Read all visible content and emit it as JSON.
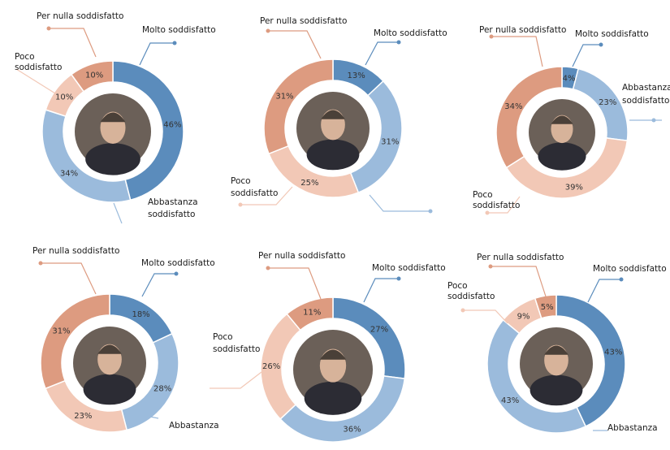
{
  "categories": [
    "Molto soddisfatto",
    "Abbastanza soddisfatto",
    "Poco soddisfatto",
    "Per nulla soddisfatto"
  ],
  "colors": {
    "molto": "#5b8cbc",
    "abbastanza": "#9bbbdc",
    "poco": "#f2c8b6",
    "per_nulla": "#dd9b80",
    "avatar_bg": "#6b6058",
    "avatar_face": "#d7b39a"
  },
  "chart_data": [
    {
      "type": "pie",
      "categories": [
        "Molto soddisfatto",
        "Abbastanza soddisfatto",
        "Poco soddisfatto",
        "Per nulla soddisfatto"
      ],
      "values": [
        46,
        34,
        10,
        10
      ],
      "labels": [
        "46%",
        "34%",
        "10%",
        "10%"
      ],
      "callouts": [
        "Molto soddisfatto",
        "Abbastanza soddisfatto",
        "Poco soddisfatto",
        "Per nulla soddisfatto"
      ]
    },
    {
      "type": "pie",
      "categories": [
        "Molto soddisfatto",
        "Abbastanza soddisfatto",
        "Poco soddisfatto",
        "Per nulla soddisfatto"
      ],
      "values": [
        13,
        31,
        25,
        31
      ],
      "labels": [
        "13%",
        "31%",
        "25%",
        "31%"
      ],
      "callouts": [
        "Molto soddisfatto",
        "",
        "Poco soddisfatto",
        "Per nulla soddisfatto"
      ]
    },
    {
      "type": "pie",
      "categories": [
        "Molto soddisfatto",
        "Abbastanza soddisfatto",
        "Poco soddisfatto",
        "Per nulla soddisfatto"
      ],
      "values": [
        4,
        23,
        39,
        34
      ],
      "labels": [
        "4%",
        "23%",
        "39%",
        "34%"
      ],
      "callouts": [
        "Molto soddisfatto",
        "Abbastanza soddisfatto",
        "Poco soddisfatto",
        "Per nulla soddisfatto"
      ]
    },
    {
      "type": "pie",
      "categories": [
        "Molto soddisfatto",
        "Abbastanza soddisfatto",
        "Poco soddisfatto",
        "Per nulla soddisfatto"
      ],
      "values": [
        18,
        28,
        23,
        31
      ],
      "labels": [
        "18%",
        "28%",
        "23%",
        "31%"
      ],
      "callouts": [
        "Molto soddisfatto",
        "Abbastanza",
        "",
        "Per nulla soddisfatto"
      ]
    },
    {
      "type": "pie",
      "categories": [
        "Molto soddisfatto",
        "Abbastanza soddisfatto",
        "Poco soddisfatto",
        "Per nulla soddisfatto"
      ],
      "values": [
        27,
        36,
        26,
        11
      ],
      "labels": [
        "27%",
        "36%",
        "26%",
        "11%"
      ],
      "callouts": [
        "Molto soddisfatto",
        "",
        "Poco soddisfatto",
        "Per nulla soddisfatto"
      ]
    },
    {
      "type": "pie",
      "categories": [
        "Molto soddisfatto",
        "Abbastanza soddisfatto",
        "Poco soddisfatto",
        "Per nulla soddisfatto"
      ],
      "values": [
        43,
        43,
        9,
        5
      ],
      "labels": [
        "43%",
        "43%",
        "9%",
        "5%"
      ],
      "callouts": [
        "Molto soddisfatto",
        "Abbastanza",
        "Poco soddisfatto",
        "Per nulla soddisfatto"
      ]
    }
  ]
}
